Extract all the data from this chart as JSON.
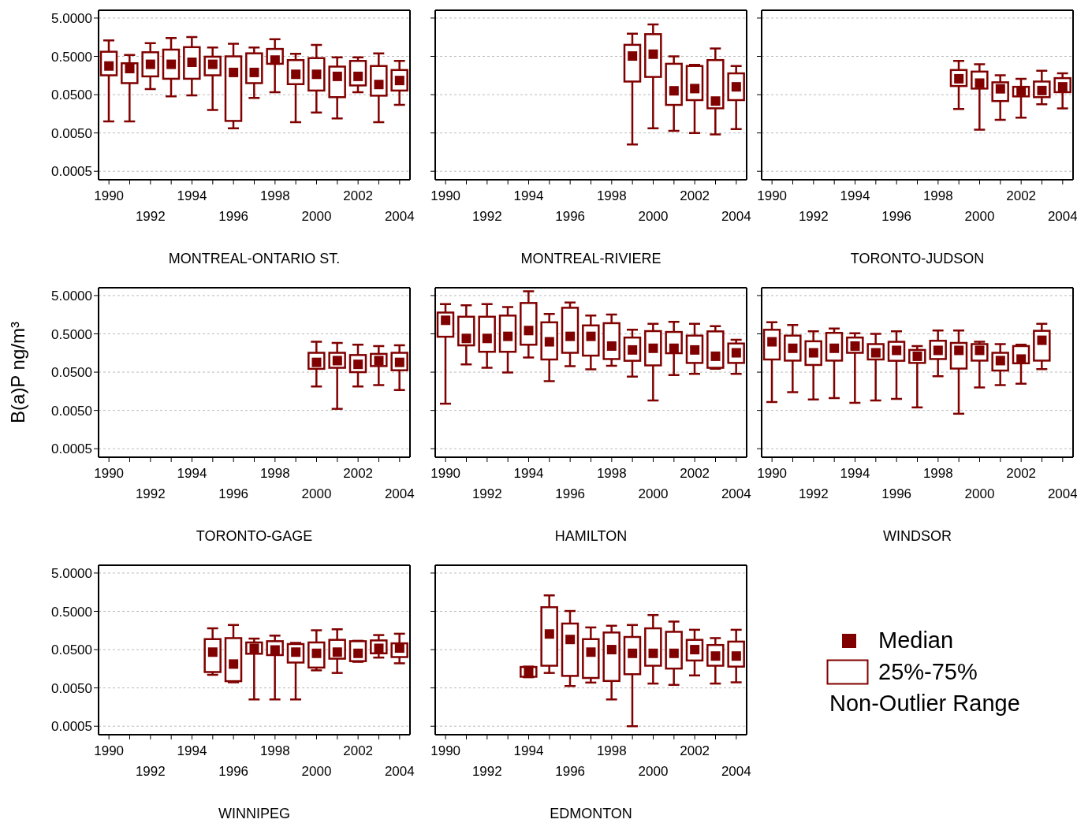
{
  "chart_data": [
    {
      "type": "box",
      "xlabel": "MONTREAL-ONTARIO ST.",
      "color": "#800000",
      "log": true,
      "grid": "y",
      "ylim": [
        0.0003,
        8
      ],
      "yticks": [
        {
          "value": 0.0005,
          "label": "0.0005"
        },
        {
          "value": 0.005,
          "label": "0.0050"
        },
        {
          "value": 0.05,
          "label": "0.0500"
        },
        {
          "value": 0.5,
          "label": "0.5000"
        },
        {
          "value": 5,
          "label": "5.0000"
        }
      ],
      "categories": [
        "1990",
        null,
        "1992",
        null,
        "1994",
        null,
        "1996",
        null,
        "1998",
        null,
        "2000",
        null,
        "2002",
        null,
        "2004"
      ],
      "boxes": [
        {
          "low": 0.01,
          "q1": 0.16,
          "median": 0.28,
          "q3": 0.66,
          "high": 1.3
        },
        {
          "low": 0.01,
          "q1": 0.1,
          "median": 0.24,
          "q3": 0.33,
          "high": 0.54
        },
        {
          "low": 0.07,
          "q1": 0.15,
          "median": 0.31,
          "q3": 0.64,
          "high": 1.1
        },
        {
          "low": 0.045,
          "q1": 0.13,
          "median": 0.31,
          "q3": 0.75,
          "high": 1.5
        },
        {
          "low": 0.048,
          "q1": 0.13,
          "median": 0.35,
          "q3": 0.87,
          "high": 1.6
        },
        {
          "low": 0.02,
          "q1": 0.16,
          "median": 0.31,
          "q3": 0.49,
          "high": 0.85
        },
        {
          "low": 0.0066,
          "q1": 0.0103,
          "median": 0.19,
          "q3": 0.5,
          "high": 1.07
        },
        {
          "low": 0.041,
          "q1": 0.1,
          "median": 0.19,
          "q3": 0.6,
          "high": 0.85
        },
        {
          "low": 0.058,
          "q1": 0.32,
          "median": 0.4,
          "q3": 0.78,
          "high": 1.4
        },
        {
          "low": 0.0095,
          "q1": 0.094,
          "median": 0.17,
          "q3": 0.4,
          "high": 0.58
        },
        {
          "low": 0.017,
          "q1": 0.064,
          "median": 0.17,
          "q3": 0.45,
          "high": 0.99
        },
        {
          "low": 0.012,
          "q1": 0.043,
          "median": 0.15,
          "q3": 0.27,
          "high": 0.47
        },
        {
          "low": 0.058,
          "q1": 0.087,
          "median": 0.15,
          "q3": 0.38,
          "high": 0.47
        },
        {
          "low": 0.0095,
          "q1": 0.047,
          "median": 0.092,
          "q3": 0.28,
          "high": 0.6
        },
        {
          "low": 0.027,
          "q1": 0.064,
          "median": 0.117,
          "q3": 0.22,
          "high": 0.38
        }
      ]
    },
    {
      "type": "box",
      "xlabel": "MONTREAL-RIVIERE",
      "color": "#800000",
      "log": true,
      "grid": "y",
      "tick_labels": "x",
      "ylim": [
        0.0003,
        8
      ],
      "yticks": [
        {
          "value": 0.0005,
          "label": null
        },
        {
          "value": 0.005,
          "label": null
        },
        {
          "value": 0.05,
          "label": null
        },
        {
          "value": 0.5,
          "label": null
        },
        {
          "value": 5,
          "label": null
        }
      ],
      "categories": [
        "1990",
        null,
        "1992",
        null,
        "1994",
        null,
        "1996",
        null,
        "1998",
        null,
        "2000",
        null,
        "2002",
        null,
        "2004"
      ],
      "boxes": [
        null,
        null,
        null,
        null,
        null,
        null,
        null,
        null,
        null,
        {
          "low": 0.0025,
          "q1": 0.11,
          "median": 0.51,
          "q3": 1.0,
          "high": 1.95
        },
        {
          "low": 0.0066,
          "q1": 0.145,
          "median": 0.57,
          "q3": 1.9,
          "high": 3.4
        },
        {
          "low": 0.0057,
          "q1": 0.027,
          "median": 0.063,
          "q3": 0.32,
          "high": 0.5
        },
        {
          "low": 0.005,
          "q1": 0.036,
          "median": 0.072,
          "q3": 0.28,
          "high": 0.3
        },
        {
          "low": 0.0046,
          "q1": 0.022,
          "median": 0.034,
          "q3": 0.4,
          "high": 0.8
        },
        {
          "low": 0.0063,
          "q1": 0.036,
          "median": 0.08,
          "q3": 0.18,
          "high": 0.28
        }
      ]
    },
    {
      "type": "box",
      "xlabel": "TORONTO-JUDSON",
      "color": "#800000",
      "log": true,
      "grid": "y",
      "tick_labels": "x",
      "ylim": [
        0.0003,
        8
      ],
      "yticks": [
        {
          "value": 0.0005,
          "label": null
        },
        {
          "value": 0.005,
          "label": null
        },
        {
          "value": 0.05,
          "label": null
        },
        {
          "value": 0.5,
          "label": null
        },
        {
          "value": 5,
          "label": null
        }
      ],
      "categories": [
        "1990",
        null,
        "1992",
        null,
        "1994",
        null,
        "1996",
        null,
        "1998",
        null,
        "2000",
        null,
        "2002",
        null,
        "2004"
      ],
      "boxes": [
        null,
        null,
        null,
        null,
        null,
        null,
        null,
        null,
        null,
        {
          "low": 0.021,
          "q1": 0.084,
          "median": 0.13,
          "q3": 0.22,
          "high": 0.38
        },
        {
          "low": 0.0061,
          "q1": 0.072,
          "median": 0.1,
          "q3": 0.2,
          "high": 0.31
        },
        {
          "low": 0.011,
          "q1": 0.034,
          "median": 0.071,
          "q3": 0.105,
          "high": 0.16
        },
        {
          "low": 0.0125,
          "q1": 0.045,
          "median": 0.063,
          "q3": 0.08,
          "high": 0.13
        },
        {
          "low": 0.028,
          "q1": 0.043,
          "median": 0.064,
          "q3": 0.11,
          "high": 0.21
        },
        {
          "low": 0.022,
          "q1": 0.058,
          "median": 0.08,
          "q3": 0.135,
          "high": 0.18
        }
      ]
    },
    {
      "type": "box",
      "xlabel": "TORONTO-GAGE",
      "ylabel": "B(a)P  ng/m³",
      "color": "#800000",
      "log": true,
      "grid": "y",
      "ylim": [
        0.0003,
        8
      ],
      "yticks": [
        {
          "value": 0.0005,
          "label": "0.0005"
        },
        {
          "value": 0.005,
          "label": "0.0050"
        },
        {
          "value": 0.05,
          "label": "0.0500"
        },
        {
          "value": 0.5,
          "label": "0.5000"
        },
        {
          "value": 5,
          "label": "5.0000"
        }
      ],
      "categories": [
        "1990",
        null,
        "1992",
        null,
        "1994",
        null,
        "1996",
        null,
        "1998",
        null,
        "2000",
        null,
        "2002",
        null,
        "2004"
      ],
      "boxes": [
        null,
        null,
        null,
        null,
        null,
        null,
        null,
        null,
        null,
        null,
        {
          "low": 0.021,
          "q1": 0.061,
          "median": 0.09,
          "q3": 0.16,
          "high": 0.31
        },
        {
          "low": 0.0055,
          "q1": 0.065,
          "median": 0.1,
          "q3": 0.16,
          "high": 0.29
        },
        {
          "low": 0.021,
          "q1": 0.05,
          "median": 0.08,
          "q3": 0.14,
          "high": 0.26
        },
        {
          "low": 0.023,
          "q1": 0.072,
          "median": 0.1,
          "q3": 0.15,
          "high": 0.24
        },
        {
          "low": 0.017,
          "q1": 0.056,
          "median": 0.09,
          "q3": 0.16,
          "high": 0.25
        }
      ]
    },
    {
      "type": "box",
      "xlabel": "HAMILTON",
      "color": "#800000",
      "log": true,
      "grid": "y",
      "tick_labels": "x",
      "ylim": [
        0.0003,
        8
      ],
      "yticks": [
        {
          "value": 0.0005,
          "label": null
        },
        {
          "value": 0.005,
          "label": null
        },
        {
          "value": 0.05,
          "label": null
        },
        {
          "value": 0.5,
          "label": null
        },
        {
          "value": 5,
          "label": null
        }
      ],
      "categories": [
        "1990",
        null,
        "1992",
        null,
        "1994",
        null,
        "1996",
        null,
        "1998",
        null,
        "2000",
        null,
        "2002",
        null,
        "2004"
      ],
      "boxes": [
        {
          "low": 0.0075,
          "q1": 0.42,
          "median": 1.13,
          "q3": 1.8,
          "high": 3.0
        },
        {
          "low": 0.08,
          "q1": 0.25,
          "median": 0.38,
          "q3": 1.4,
          "high": 2.8
        },
        {
          "low": 0.065,
          "q1": 0.17,
          "median": 0.38,
          "q3": 1.4,
          "high": 3.0
        },
        {
          "low": 0.049,
          "q1": 0.17,
          "median": 0.43,
          "q3": 1.5,
          "high": 2.5
        },
        {
          "low": 0.12,
          "q1": 0.26,
          "median": 0.61,
          "q3": 3.2,
          "high": 6.5
        },
        {
          "low": 0.029,
          "q1": 0.107,
          "median": 0.31,
          "q3": 1.0,
          "high": 1.66
        },
        {
          "low": 0.072,
          "q1": 0.16,
          "median": 0.43,
          "q3": 2.4,
          "high": 3.3
        },
        {
          "low": 0.059,
          "q1": 0.135,
          "median": 0.43,
          "q3": 0.83,
          "high": 1.5
        },
        {
          "low": 0.073,
          "q1": 0.11,
          "median": 0.24,
          "q3": 0.95,
          "high": 1.6
        },
        {
          "low": 0.038,
          "q1": 0.099,
          "median": 0.19,
          "q3": 0.4,
          "high": 0.64
        },
        {
          "low": 0.0091,
          "q1": 0.075,
          "median": 0.21,
          "q3": 0.59,
          "high": 0.91
        },
        {
          "low": 0.042,
          "q1": 0.156,
          "median": 0.21,
          "q3": 0.56,
          "high": 1.03
        },
        {
          "low": 0.045,
          "q1": 0.087,
          "median": 0.19,
          "q3": 0.45,
          "high": 0.91
        },
        {
          "low": 0.061,
          "q1": 0.065,
          "median": 0.13,
          "q3": 0.58,
          "high": 0.79
        },
        {
          "low": 0.045,
          "q1": 0.087,
          "median": 0.16,
          "q3": 0.28,
          "high": 0.35
        }
      ]
    },
    {
      "type": "box",
      "xlabel": "WINDSOR",
      "color": "#800000",
      "log": true,
      "grid": "y",
      "tick_labels": "x",
      "ylim": [
        0.0003,
        8
      ],
      "yticks": [
        {
          "value": 0.0005,
          "label": null
        },
        {
          "value": 0.005,
          "label": null
        },
        {
          "value": 0.05,
          "label": null
        },
        {
          "value": 0.5,
          "label": null
        },
        {
          "value": 5,
          "label": null
        }
      ],
      "categories": [
        "1990",
        null,
        "1992",
        null,
        "1994",
        null,
        "1996",
        null,
        "1998",
        null,
        "2000",
        null,
        "2002",
        null,
        "2004"
      ],
      "boxes": [
        {
          "low": 0.0083,
          "q1": 0.107,
          "median": 0.31,
          "q3": 0.64,
          "high": 1.0
        },
        {
          "low": 0.015,
          "q1": 0.1,
          "median": 0.21,
          "q3": 0.45,
          "high": 0.85
        },
        {
          "low": 0.0097,
          "q1": 0.077,
          "median": 0.16,
          "q3": 0.32,
          "high": 0.58
        },
        {
          "low": 0.0105,
          "q1": 0.1,
          "median": 0.21,
          "q3": 0.53,
          "high": 0.69
        },
        {
          "low": 0.0079,
          "q1": 0.16,
          "median": 0.24,
          "q3": 0.4,
          "high": 0.52
        },
        {
          "low": 0.0091,
          "q1": 0.107,
          "median": 0.16,
          "q3": 0.27,
          "high": 0.5
        },
        {
          "low": 0.01,
          "q1": 0.099,
          "median": 0.185,
          "q3": 0.31,
          "high": 0.58
        },
        {
          "low": 0.006,
          "q1": 0.087,
          "median": 0.13,
          "q3": 0.19,
          "high": 0.24
        },
        {
          "low": 0.039,
          "q1": 0.11,
          "median": 0.185,
          "q3": 0.33,
          "high": 0.61
        },
        {
          "low": 0.0041,
          "q1": 0.062,
          "median": 0.185,
          "q3": 0.29,
          "high": 0.61
        },
        {
          "low": 0.02,
          "q1": 0.1,
          "median": 0.185,
          "q3": 0.27,
          "high": 0.31
        },
        {
          "low": 0.023,
          "q1": 0.055,
          "median": 0.1,
          "q3": 0.16,
          "high": 0.27
        },
        {
          "low": 0.025,
          "q1": 0.085,
          "median": 0.11,
          "q3": 0.24,
          "high": 0.26
        },
        {
          "low": 0.06,
          "q1": 0.1,
          "median": 0.34,
          "q3": 0.6,
          "high": 0.91
        },
        null
      ]
    },
    {
      "type": "box",
      "xlabel": "WINNIPEG",
      "color": "#800000",
      "log": true,
      "grid": "y",
      "ylim": [
        0.0003,
        8
      ],
      "yticks": [
        {
          "value": 0.0005,
          "label": "0.0005"
        },
        {
          "value": 0.005,
          "label": "0.0050"
        },
        {
          "value": 0.05,
          "label": "0.0500"
        },
        {
          "value": 0.5,
          "label": "0.5000"
        },
        {
          "value": 5,
          "label": "5.0000"
        }
      ],
      "categories": [
        "1990",
        null,
        "1992",
        null,
        "1994",
        null,
        "1996",
        null,
        "1998",
        null,
        "2000",
        null,
        "2002",
        null,
        "2004"
      ],
      "boxes": [
        null,
        null,
        null,
        null,
        null,
        {
          "low": 0.011,
          "q1": 0.013,
          "median": 0.043,
          "q3": 0.094,
          "high": 0.18
        },
        {
          "low": 0.007,
          "q1": 0.0075,
          "median": 0.021,
          "q3": 0.1,
          "high": 0.22
        },
        {
          "low": 0.0025,
          "q1": 0.039,
          "median": 0.054,
          "q3": 0.077,
          "high": 0.097
        },
        {
          "low": 0.0025,
          "q1": 0.036,
          "median": 0.049,
          "q3": 0.083,
          "high": 0.116
        },
        {
          "low": 0.0025,
          "q1": 0.023,
          "median": 0.043,
          "q3": 0.07,
          "high": 0.075
        },
        {
          "low": 0.0144,
          "q1": 0.017,
          "median": 0.04,
          "q3": 0.077,
          "high": 0.16
        },
        {
          "low": 0.0123,
          "q1": 0.029,
          "median": 0.043,
          "q3": 0.09,
          "high": 0.17
        },
        {
          "low": 0.024,
          "q1": 0.025,
          "median": 0.04,
          "q3": 0.083,
          "high": 0.085
        },
        {
          "low": 0.031,
          "q1": 0.04,
          "median": 0.054,
          "q3": 0.087,
          "high": 0.12
        },
        {
          "low": 0.022,
          "q1": 0.032,
          "median": 0.055,
          "q3": 0.073,
          "high": 0.13
        }
      ]
    },
    {
      "type": "box",
      "xlabel": "EDMONTON",
      "color": "#800000",
      "log": true,
      "grid": "y",
      "tick_labels": "x",
      "ylim": [
        0.0003,
        8
      ],
      "yticks": [
        {
          "value": 0.0005,
          "label": null
        },
        {
          "value": 0.005,
          "label": null
        },
        {
          "value": 0.05,
          "label": null
        },
        {
          "value": 0.5,
          "label": null
        },
        {
          "value": 5,
          "label": null
        }
      ],
      "categories": [
        "1990",
        null,
        "1992",
        null,
        "1994",
        null,
        "1996",
        null,
        "1998",
        null,
        "2000",
        null,
        "2002",
        null,
        "2004"
      ],
      "boxes": [
        null,
        null,
        null,
        null,
        {
          "low": 0.0095,
          "q1": 0.0098,
          "median": 0.0133,
          "q3": 0.0176,
          "high": 0.018
        },
        {
          "low": 0.0123,
          "q1": 0.019,
          "median": 0.128,
          "q3": 0.64,
          "high": 1.3
        },
        {
          "low": 0.0056,
          "q1": 0.0103,
          "median": 0.092,
          "q3": 0.24,
          "high": 0.51
        },
        {
          "low": 0.0069,
          "q1": 0.0091,
          "median": 0.043,
          "q3": 0.094,
          "high": 0.19
        },
        {
          "low": 0.0025,
          "q1": 0.0076,
          "median": 0.05,
          "q3": 0.14,
          "high": 0.21
        },
        {
          "low": 0.0005,
          "q1": 0.0114,
          "median": 0.04,
          "q3": 0.107,
          "high": 0.22
        },
        {
          "low": 0.0065,
          "q1": 0.019,
          "median": 0.04,
          "q3": 0.18,
          "high": 0.4
        },
        {
          "low": 0.006,
          "q1": 0.016,
          "median": 0.04,
          "q3": 0.146,
          "high": 0.27
        },
        {
          "low": 0.0106,
          "q1": 0.026,
          "median": 0.05,
          "q3": 0.09,
          "high": 0.165
        },
        {
          "low": 0.0065,
          "q1": 0.019,
          "median": 0.034,
          "q3": 0.066,
          "high": 0.1
        },
        {
          "low": 0.007,
          "q1": 0.018,
          "median": 0.034,
          "q3": 0.081,
          "high": 0.165
        }
      ]
    },
    {
      "type": "other",
      "color": "#800000",
      "annotations": [
        "Median",
        "25%-75%",
        "Non-Outlier Range"
      ]
    }
  ]
}
